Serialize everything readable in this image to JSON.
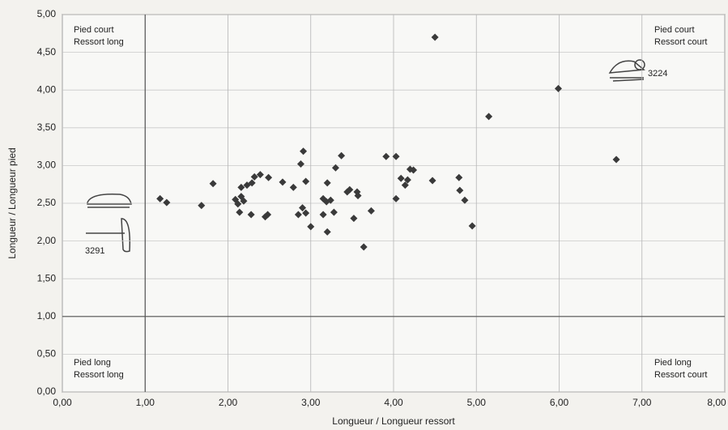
{
  "chart_data": {
    "type": "scatter",
    "xlabel": "Longueur / Longueur ressort",
    "ylabel": "Longueur / Longueur pied",
    "xlim": [
      0,
      8
    ],
    "ylim": [
      0,
      5
    ],
    "xticks": [
      {
        "value": 0,
        "label": "0,00"
      },
      {
        "value": 1,
        "label": "1,00"
      },
      {
        "value": 2,
        "label": "2,00"
      },
      {
        "value": 3,
        "label": "3,00"
      },
      {
        "value": 4,
        "label": "4,00"
      },
      {
        "value": 5,
        "label": "5,00"
      },
      {
        "value": 6,
        "label": "6,00"
      },
      {
        "value": 7,
        "label": "7,00"
      },
      {
        "value": 8,
        "label": "8,00"
      }
    ],
    "yticks": [
      {
        "value": 0,
        "label": "0,00"
      },
      {
        "value": 0.5,
        "label": "0,50"
      },
      {
        "value": 1,
        "label": "1,00"
      },
      {
        "value": 1.5,
        "label": "1,50"
      },
      {
        "value": 2,
        "label": "2,00"
      },
      {
        "value": 2.5,
        "label": "2,50"
      },
      {
        "value": 3,
        "label": "3,00"
      },
      {
        "value": 3.5,
        "label": "3,50"
      },
      {
        "value": 4,
        "label": "4,00"
      },
      {
        "value": 4.5,
        "label": "4,50"
      },
      {
        "value": 5,
        "label": "5,00"
      }
    ],
    "grid": true,
    "divider_x": 1,
    "divider_y": 1,
    "color": "#3a3a3a",
    "x": [
      4.5,
      5.99,
      5.15,
      6.69,
      1.18,
      1.26,
      1.68,
      1.82,
      2.09,
      2.12,
      2.14,
      2.16,
      2.19,
      2.16,
      2.23,
      2.28,
      2.29,
      2.32,
      2.39,
      2.45,
      2.49,
      2.48,
      2.66,
      2.79,
      2.88,
      2.91,
      2.9,
      2.94,
      2.94,
      2.85,
      3.0,
      3.15,
      3.15,
      3.19,
      3.2,
      3.2,
      3.24,
      3.28,
      3.3,
      3.37,
      3.44,
      3.47,
      3.52,
      3.56,
      3.57,
      3.64,
      3.73,
      3.91,
      4.03,
      4.03,
      4.09,
      4.14,
      4.17,
      4.2,
      4.24,
      4.47,
      4.79,
      4.8,
      4.86,
      4.95
    ],
    "values": [
      4.7,
      4.02,
      3.65,
      3.08,
      2.56,
      2.51,
      2.47,
      2.76,
      2.55,
      2.49,
      2.38,
      2.59,
      2.53,
      2.71,
      2.74,
      2.35,
      2.77,
      2.85,
      2.88,
      2.32,
      2.84,
      2.35,
      2.78,
      2.71,
      3.02,
      3.19,
      2.44,
      2.79,
      2.37,
      2.35,
      2.19,
      2.35,
      2.56,
      2.52,
      2.77,
      2.12,
      2.54,
      2.38,
      2.97,
      3.13,
      2.65,
      2.68,
      2.3,
      2.65,
      2.6,
      1.92,
      2.4,
      3.12,
      3.12,
      2.56,
      2.83,
      2.74,
      2.81,
      2.95,
      2.94,
      2.8,
      2.84,
      2.67,
      2.54,
      2.2
    ],
    "annotations": [
      [
        "Pied  court",
        "Ressort long"
      ],
      [
        "Pied court",
        "Ressort court"
      ],
      [
        "Pied long",
        "Ressort long"
      ],
      [
        "Pied long",
        "Ressort court"
      ]
    ],
    "specimens": [
      "3291",
      "3224"
    ]
  }
}
